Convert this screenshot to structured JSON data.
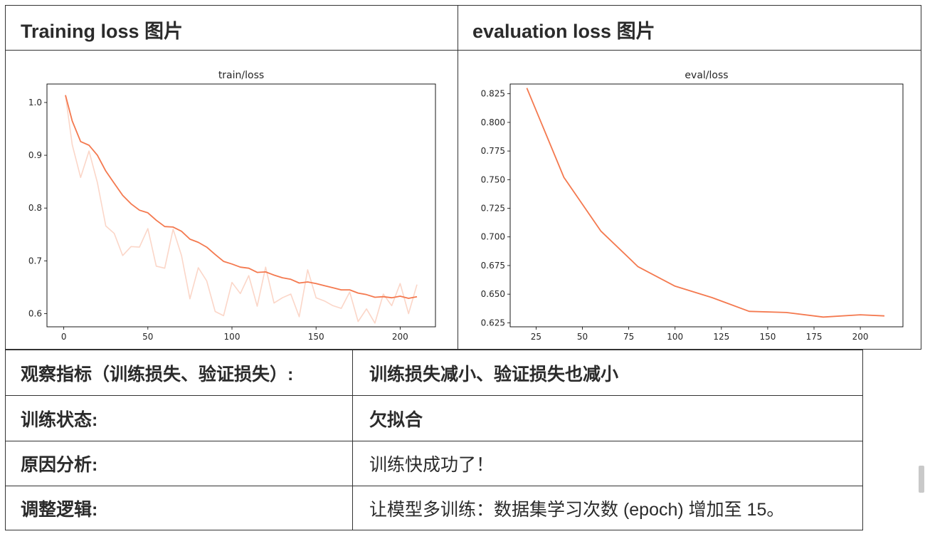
{
  "top_table": {
    "left_header": "Training loss 图片",
    "right_header": "evaluation loss 图片"
  },
  "bottom_table": {
    "rows": [
      {
        "label": "观察指标（训练损失、验证损失）:",
        "value": "训练损失减小、验证损失也减小",
        "value_bold": true
      },
      {
        "label": "训练状态:",
        "value": "欠拟合",
        "value_bold": true
      },
      {
        "label": "原因分析:",
        "value": "训练快成功了！",
        "value_bold": false
      },
      {
        "label": "调整逻辑:",
        "value": "让模型多训练：数据集学习次数 (epoch) 增加至 15。",
        "value_bold": false
      }
    ]
  },
  "colors": {
    "line": "#f4794f",
    "raw_line": "#fbd6c8",
    "border": "#333333"
  },
  "chart_data": [
    {
      "type": "line",
      "title": "train/loss",
      "xlim": [
        -10,
        221
      ],
      "ylim": [
        0.575,
        1.035
      ],
      "xticks": [
        0,
        50,
        100,
        150,
        200
      ],
      "xtick_labels": [
        "0",
        "50",
        "100",
        "150",
        "200"
      ],
      "yticks": [
        0.6,
        0.7,
        0.8,
        0.9,
        1.0
      ],
      "ytick_labels": [
        "0.6",
        "0.7",
        "0.8",
        "0.9",
        "1.0"
      ],
      "grid": false,
      "series": [
        {
          "x": [
            1,
            5,
            10,
            15,
            20,
            25,
            30,
            35,
            40,
            45,
            50,
            55,
            60,
            65,
            70,
            75,
            80,
            85,
            90,
            95,
            100,
            105,
            110,
            115,
            120,
            125,
            130,
            135,
            140,
            145,
            150,
            155,
            160,
            165,
            170,
            175,
            180,
            185,
            190,
            195,
            200,
            205,
            210
          ],
          "y": [
            1.014,
            0.92,
            0.858,
            0.908,
            0.848,
            0.766,
            0.752,
            0.71,
            0.727,
            0.726,
            0.761,
            0.69,
            0.686,
            0.76,
            0.71,
            0.628,
            0.687,
            0.662,
            0.604,
            0.596,
            0.659,
            0.638,
            0.672,
            0.614,
            0.688,
            0.62,
            0.63,
            0.637,
            0.594,
            0.683,
            0.63,
            0.624,
            0.615,
            0.61,
            0.641,
            0.585,
            0.609,
            0.582,
            0.637,
            0.615,
            0.657,
            0.6,
            0.655
          ]
        },
        {
          "x": [
            1,
            5,
            10,
            15,
            20,
            25,
            30,
            35,
            40,
            45,
            50,
            55,
            60,
            65,
            70,
            75,
            80,
            85,
            90,
            95,
            100,
            105,
            110,
            115,
            120,
            125,
            130,
            135,
            140,
            145,
            150,
            155,
            160,
            165,
            170,
            175,
            180,
            185,
            190,
            195,
            200,
            205,
            210
          ],
          "y": [
            1.014,
            0.965,
            0.926,
            0.919,
            0.9,
            0.87,
            0.847,
            0.824,
            0.808,
            0.796,
            0.791,
            0.777,
            0.765,
            0.764,
            0.756,
            0.741,
            0.735,
            0.726,
            0.712,
            0.699,
            0.694,
            0.688,
            0.686,
            0.678,
            0.679,
            0.673,
            0.668,
            0.665,
            0.658,
            0.66,
            0.657,
            0.653,
            0.649,
            0.645,
            0.645,
            0.639,
            0.636,
            0.631,
            0.632,
            0.63,
            0.633,
            0.629,
            0.632
          ]
        }
      ]
    },
    {
      "type": "line",
      "title": "eval/loss",
      "xlim": [
        11,
        223
      ],
      "ylim": [
        0.6215,
        0.8335
      ],
      "xticks": [
        25,
        50,
        75,
        100,
        125,
        150,
        175,
        200
      ],
      "xtick_labels": [
        "25",
        "50",
        "75",
        "100",
        "125",
        "150",
        "175",
        "200"
      ],
      "yticks": [
        0.625,
        0.65,
        0.675,
        0.7,
        0.725,
        0.75,
        0.775,
        0.8,
        0.825
      ],
      "ytick_labels": [
        "0.625",
        "0.650",
        "0.675",
        "0.700",
        "0.725",
        "0.750",
        "0.775",
        "0.800",
        "0.825"
      ],
      "grid": false,
      "series": [
        {
          "x": [
            20,
            40,
            60,
            80,
            100,
            120,
            140,
            160,
            180,
            200,
            213
          ],
          "y": [
            0.83,
            0.752,
            0.705,
            0.674,
            0.657,
            0.647,
            0.635,
            0.634,
            0.63,
            0.632,
            0.631
          ]
        }
      ]
    }
  ]
}
